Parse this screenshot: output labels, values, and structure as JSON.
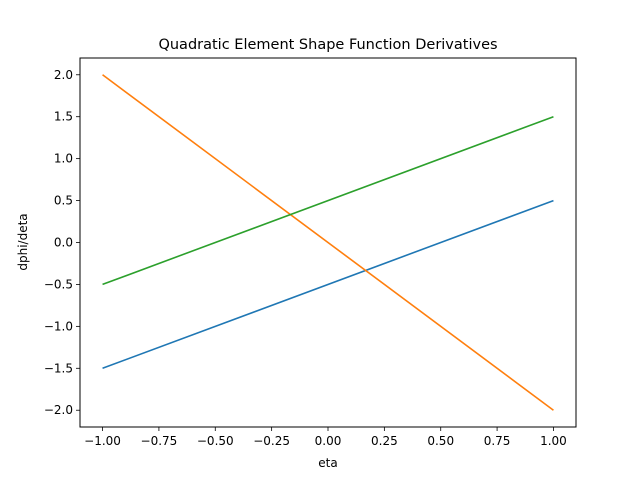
{
  "chart_data": {
    "type": "line",
    "title": "Quadratic Element Shape Function Derivatives",
    "xlabel": "eta",
    "ylabel": "dphi/deta",
    "xlim": [
      -1.1,
      1.1
    ],
    "ylim": [
      -2.2,
      2.2
    ],
    "x_ticks": [
      -1.0,
      -0.75,
      -0.5,
      -0.25,
      0.0,
      0.25,
      0.5,
      0.75,
      1.0
    ],
    "x_tick_labels": [
      "−1.00",
      "−0.75",
      "−0.50",
      "−0.25",
      "0.00",
      "0.25",
      "0.50",
      "0.75",
      "1.00"
    ],
    "y_ticks": [
      -2.0,
      -1.5,
      -1.0,
      -0.5,
      0.0,
      0.5,
      1.0,
      1.5,
      2.0
    ],
    "y_tick_labels": [
      "−2.0",
      "−1.5",
      "−1.0",
      "−0.5",
      "0.0",
      "0.5",
      "1.0",
      "1.5",
      "2.0"
    ],
    "grid": false,
    "legend": "none",
    "series": [
      {
        "color": "#1f77b4",
        "x": [
          -1.0,
          1.0
        ],
        "y": [
          -1.5,
          0.5
        ]
      },
      {
        "color": "#ff7f0e",
        "x": [
          -1.0,
          1.0
        ],
        "y": [
          2.0,
          -2.0
        ]
      },
      {
        "color": "#2ca02c",
        "x": [
          -1.0,
          1.0
        ],
        "y": [
          -0.5,
          1.5
        ]
      }
    ]
  }
}
